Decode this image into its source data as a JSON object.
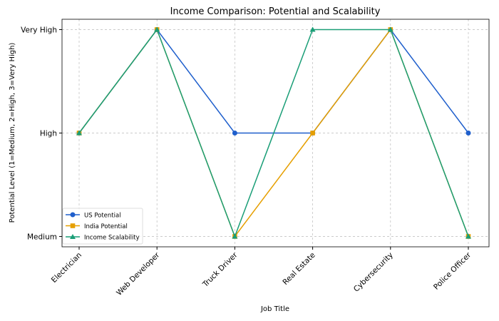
{
  "chart_data": {
    "type": "line",
    "title": "Income Comparison: Potential and Scalability",
    "xlabel": "Job Title",
    "ylabel": "Potential Level (1=Medium, 2=High, 3=Very High)",
    "categories": [
      "Electrician",
      "Web Developer",
      "Truck Driver",
      "Real Estate",
      "Cybersecurity",
      "Police Officer"
    ],
    "yticks": [
      1,
      2,
      3
    ],
    "ytick_labels": [
      "Medium",
      "High",
      "Very High"
    ],
    "ylim": [
      0.9,
      3.1
    ],
    "grid": true,
    "legend_position": "lower-left",
    "series": [
      {
        "name": "US Potential",
        "values": [
          2,
          3,
          2,
          2,
          3,
          2
        ],
        "color": "#1f5fcc",
        "marker": "circle"
      },
      {
        "name": "India Potential",
        "values": [
          2,
          3,
          1,
          2,
          3,
          1
        ],
        "color": "#e69f00",
        "marker": "square"
      },
      {
        "name": "Income Scalability",
        "values": [
          2,
          3,
          1,
          3,
          3,
          1
        ],
        "color": "#1a9e77",
        "marker": "triangle"
      }
    ]
  }
}
